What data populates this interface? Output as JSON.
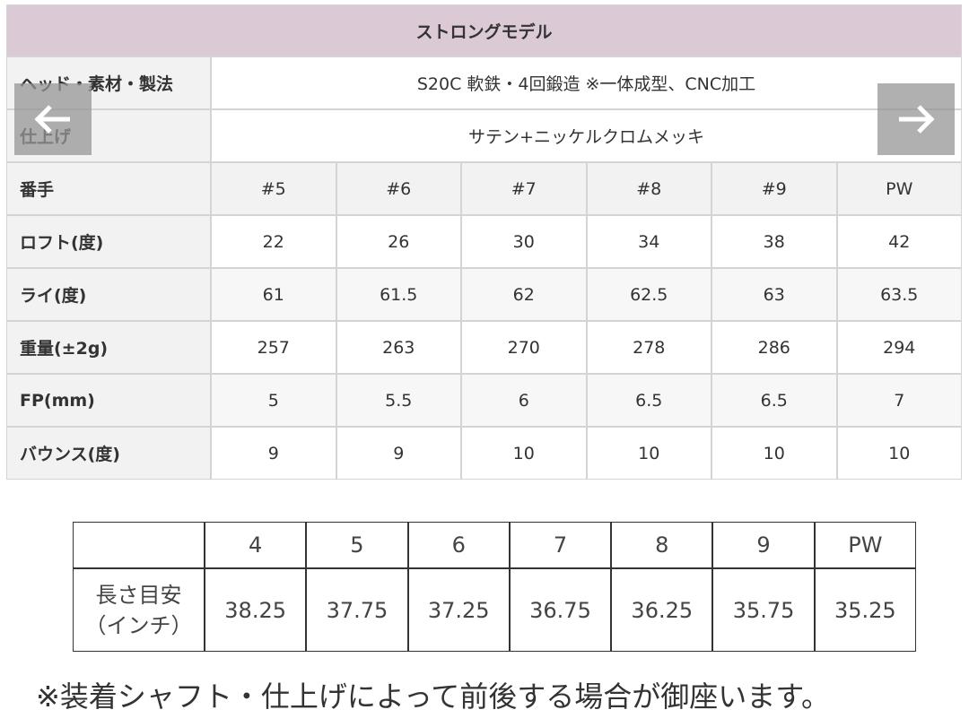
{
  "spec_table": {
    "title": "ストロングモデル",
    "info_rows": [
      [
        "ヘッド・素材・製法",
        "S20C 軟鉄・4回鍛造 ※一体成型、CNC加工"
      ],
      [
        "仕上げ",
        "サテン+ニッケルクロムメッキ"
      ]
    ],
    "header": [
      "番手",
      "#5",
      "#6",
      "#7",
      "#8",
      "#9",
      "PW"
    ],
    "rows": [
      [
        "ロフト(度)",
        "22",
        "26",
        "30",
        "34",
        "38",
        "42"
      ],
      [
        "ライ(度)",
        "61",
        "61.5",
        "62",
        "62.5",
        "63",
        "63.5"
      ],
      [
        "重量(±2g)",
        "257",
        "263",
        "270",
        "278",
        "286",
        "294"
      ],
      [
        "FP(mm)",
        "5",
        "5.5",
        "6",
        "6.5",
        "6.5",
        "7"
      ],
      [
        "バウンス(度)",
        "9",
        "9",
        "10",
        "10",
        "10",
        "10"
      ]
    ]
  },
  "length_table": {
    "header": [
      "4",
      "5",
      "6",
      "7",
      "8",
      "9",
      "PW"
    ],
    "row_label": [
      "長さ目安",
      "（インチ）"
    ],
    "values": [
      "38.25",
      "37.75",
      "37.25",
      "36.75",
      "36.25",
      "35.75",
      "35.25"
    ]
  },
  "note": "※装着シャフト・仕上げによって前後する場合が御座います。"
}
